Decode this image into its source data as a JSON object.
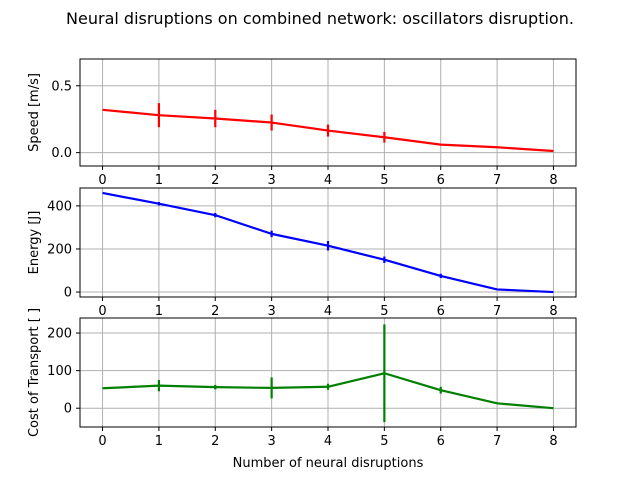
{
  "title": "Neural disruptions on combined network: oscillators disruption.",
  "xlabel": "Number of neural disruptions",
  "chart_data": [
    {
      "type": "line",
      "ylabel": "Speed [m/s]",
      "color": "#ff0000",
      "x": [
        0,
        1,
        2,
        3,
        4,
        5,
        6,
        7,
        8
      ],
      "values": [
        0.32,
        0.28,
        0.255,
        0.225,
        0.165,
        0.115,
        0.06,
        0.04,
        0.012
      ],
      "err": [
        0,
        0.09,
        0.065,
        0.06,
        0.045,
        0.04,
        0,
        0,
        0
      ],
      "xticks": [
        0,
        1,
        2,
        3,
        4,
        5,
        6,
        7,
        8
      ],
      "yticks": [
        0.0,
        0.5
      ],
      "ytick_labels": [
        "0.0",
        "0.5"
      ],
      "xlim": [
        -0.4,
        8.4
      ],
      "ylim": [
        -0.1,
        0.7
      ],
      "grid": true
    },
    {
      "type": "line",
      "ylabel": "Energy [J]",
      "color": "#0000ff",
      "x": [
        0,
        1,
        2,
        3,
        4,
        5,
        6,
        7,
        8
      ],
      "values": [
        460,
        410,
        357,
        270,
        215,
        150,
        75,
        12,
        0
      ],
      "err": [
        0,
        8,
        10,
        15,
        22,
        15,
        10,
        0,
        0
      ],
      "xticks": [
        0,
        1,
        2,
        3,
        4,
        5,
        6,
        7,
        8
      ],
      "yticks": [
        0,
        200,
        400
      ],
      "ytick_labels": [
        "0",
        "200",
        "400"
      ],
      "xlim": [
        -0.4,
        8.4
      ],
      "ylim": [
        -23,
        483
      ],
      "grid": true
    },
    {
      "type": "line",
      "ylabel": "Cost of Transport [ ]",
      "color": "#008000",
      "x": [
        0,
        1,
        2,
        3,
        4,
        5,
        6,
        7,
        8
      ],
      "values": [
        53,
        60,
        56,
        54,
        57,
        93,
        48,
        13,
        0
      ],
      "err": [
        0,
        15,
        6,
        28,
        8,
        130,
        9,
        0,
        0
      ],
      "xticks": [
        0,
        1,
        2,
        3,
        4,
        5,
        6,
        7,
        8
      ],
      "yticks": [
        0,
        100,
        200
      ],
      "ytick_labels": [
        "0",
        "100",
        "200"
      ],
      "xlim": [
        -0.4,
        8.4
      ],
      "ylim": [
        -50,
        240
      ],
      "grid": true
    }
  ]
}
